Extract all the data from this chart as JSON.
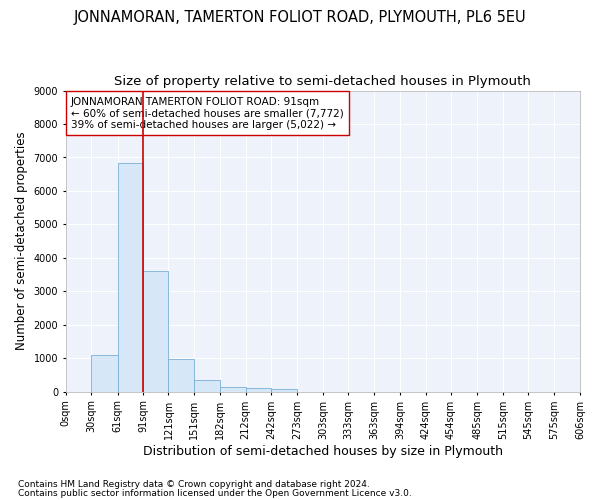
{
  "title": "JONNAMORAN, TAMERTON FOLIOT ROAD, PLYMOUTH, PL6 5EU",
  "subtitle": "Size of property relative to semi-detached houses in Plymouth",
  "xlabel": "Distribution of semi-detached houses by size in Plymouth",
  "ylabel": "Number of semi-detached properties",
  "footnote1": "Contains HM Land Registry data © Crown copyright and database right 2024.",
  "footnote2": "Contains public sector information licensed under the Open Government Licence v3.0.",
  "annotation_line1": "JONNAMORAN TAMERTON FOLIOT ROAD: 91sqm",
  "annotation_line2": "← 60% of semi-detached houses are smaller (7,772)",
  "annotation_line3": "39% of semi-detached houses are larger (5,022) →",
  "property_size": 91,
  "bar_color": "#d6e8f7",
  "bar_edge_color": "#7ab0d8",
  "red_line_color": "#cc0000",
  "bin_edges": [
    0,
    30,
    61,
    91,
    121,
    151,
    182,
    212,
    242,
    273,
    303,
    333,
    363,
    394,
    424,
    454,
    485,
    515,
    545,
    575,
    606
  ],
  "bar_heights": [
    0,
    1100,
    6850,
    3600,
    980,
    350,
    150,
    100,
    75,
    0,
    0,
    0,
    0,
    0,
    0,
    0,
    0,
    0,
    0,
    0
  ],
  "ylim": [
    0,
    9000
  ],
  "yticks": [
    0,
    1000,
    2000,
    3000,
    4000,
    5000,
    6000,
    7000,
    8000,
    9000
  ],
  "background_color": "#eef2fb",
  "grid_color": "#ffffff",
  "title_fontsize": 10.5,
  "subtitle_fontsize": 9.5,
  "xlabel_fontsize": 9,
  "ylabel_fontsize": 8.5,
  "tick_fontsize": 7,
  "annotation_fontsize": 7.5,
  "footnote_fontsize": 6.5
}
